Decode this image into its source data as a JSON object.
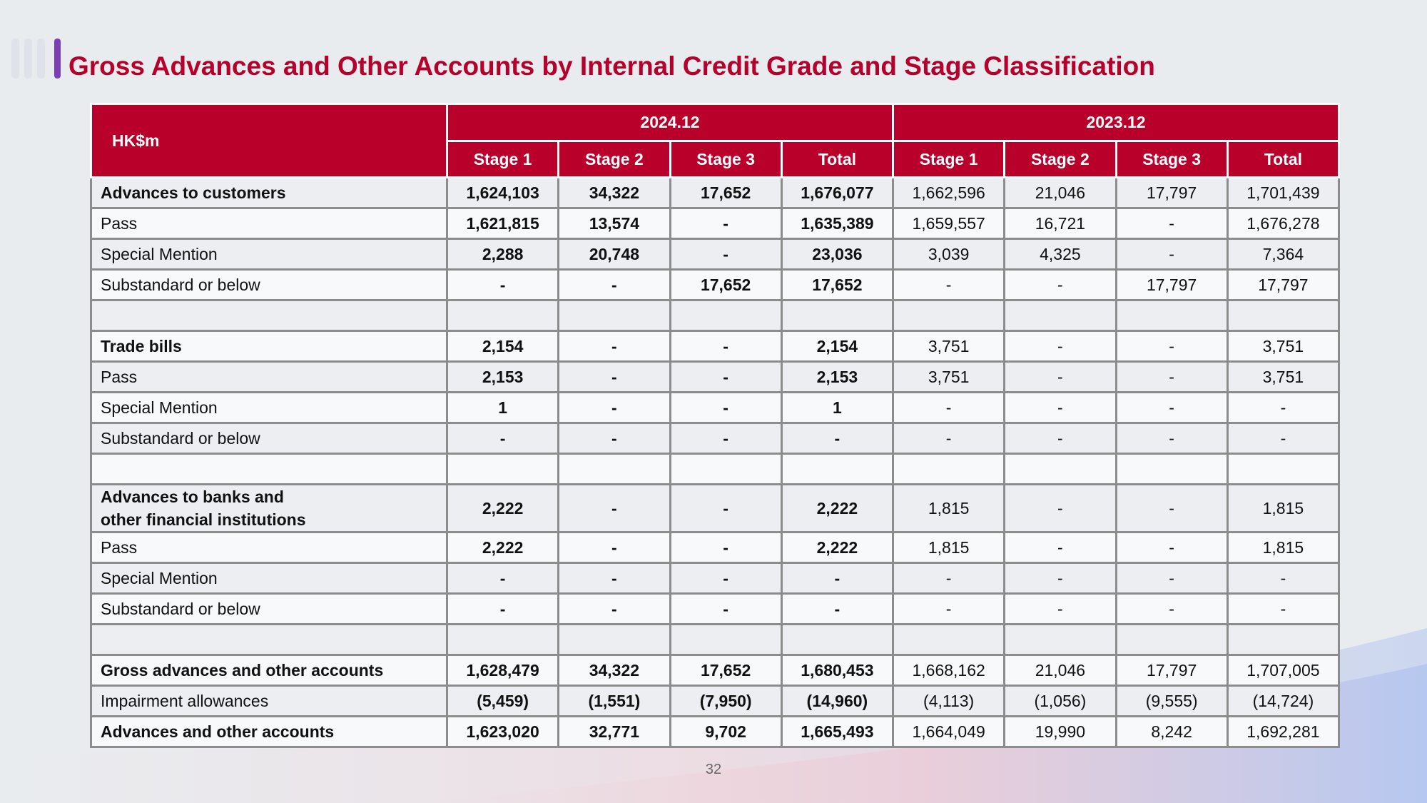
{
  "title": "Gross Advances and Other Accounts by Internal Credit Grade and Stage Classification",
  "table": {
    "unit": "HK$m",
    "periods": [
      "2024.12",
      "2023.12"
    ],
    "columns": [
      "Stage 1",
      "Stage 2",
      "Stage 3",
      "Total"
    ],
    "groups": [
      {
        "rows": [
          {
            "label": "Advances to customers",
            "bold": true,
            "cells": [
              "1,624,103",
              "34,322",
              "17,652",
              "1,676,077",
              "1,662,596",
              "21,046",
              "17,797",
              "1,701,439"
            ]
          },
          {
            "label": "Pass",
            "bold": false,
            "cells": [
              "1,621,815",
              "13,574",
              "-",
              "1,635,389",
              "1,659,557",
              "16,721",
              "-",
              "1,676,278"
            ]
          },
          {
            "label": "Special Mention",
            "bold": false,
            "cells": [
              "2,288",
              "20,748",
              "-",
              "23,036",
              "3,039",
              "4,325",
              "-",
              "7,364"
            ]
          },
          {
            "label": "Substandard or below",
            "bold": false,
            "cells": [
              "-",
              "-",
              "17,652",
              "17,652",
              "-",
              "-",
              "17,797",
              "17,797"
            ]
          }
        ]
      },
      {
        "rows": [
          {
            "label": "Trade bills",
            "bold": true,
            "cells": [
              "2,154",
              "-",
              "-",
              "2,154",
              "3,751",
              "-",
              "-",
              "3,751"
            ]
          },
          {
            "label": "Pass",
            "bold": false,
            "cells": [
              "2,153",
              "-",
              "-",
              "2,153",
              "3,751",
              "-",
              "-",
              "3,751"
            ]
          },
          {
            "label": "Special Mention",
            "bold": false,
            "cells": [
              "1",
              "-",
              "-",
              "1",
              "-",
              "-",
              "-",
              "-"
            ]
          },
          {
            "label": "Substandard or below",
            "bold": false,
            "cells": [
              "-",
              "-",
              "-",
              "-",
              "-",
              "-",
              "-",
              "-"
            ]
          }
        ]
      },
      {
        "rows": [
          {
            "label": "Advances to banks and\nother financial institutions",
            "bold": true,
            "cells": [
              "2,222",
              "-",
              "-",
              "2,222",
              "1,815",
              "-",
              "-",
              "1,815"
            ]
          },
          {
            "label": "Pass",
            "bold": false,
            "cells": [
              "2,222",
              "-",
              "-",
              "2,222",
              "1,815",
              "-",
              "-",
              "1,815"
            ]
          },
          {
            "label": "Special Mention",
            "bold": false,
            "cells": [
              "-",
              "-",
              "-",
              "-",
              "-",
              "-",
              "-",
              "-"
            ]
          },
          {
            "label": "Substandard or below",
            "bold": false,
            "cells": [
              "-",
              "-",
              "-",
              "-",
              "-",
              "-",
              "-",
              "-"
            ]
          }
        ]
      },
      {
        "rows": [
          {
            "label": "Gross advances and other accounts",
            "bold": true,
            "cells": [
              "1,628,479",
              "34,322",
              "17,652",
              "1,680,453",
              "1,668,162",
              "21,046",
              "17,797",
              "1,707,005"
            ]
          },
          {
            "label": "Impairment allowances",
            "bold": false,
            "cells": [
              "(5,459)",
              "(1,551)",
              "(7,950)",
              "(14,960)",
              "(4,113)",
              "(1,056)",
              "(9,555)",
              "(14,724)"
            ]
          },
          {
            "label": "Advances and other accounts",
            "bold": true,
            "cells": [
              "1,623,020",
              "32,771",
              "9,702",
              "1,665,493",
              "1,664,049",
              "19,990",
              "8,242",
              "1,692,281"
            ]
          }
        ]
      }
    ]
  },
  "page_number": "32"
}
